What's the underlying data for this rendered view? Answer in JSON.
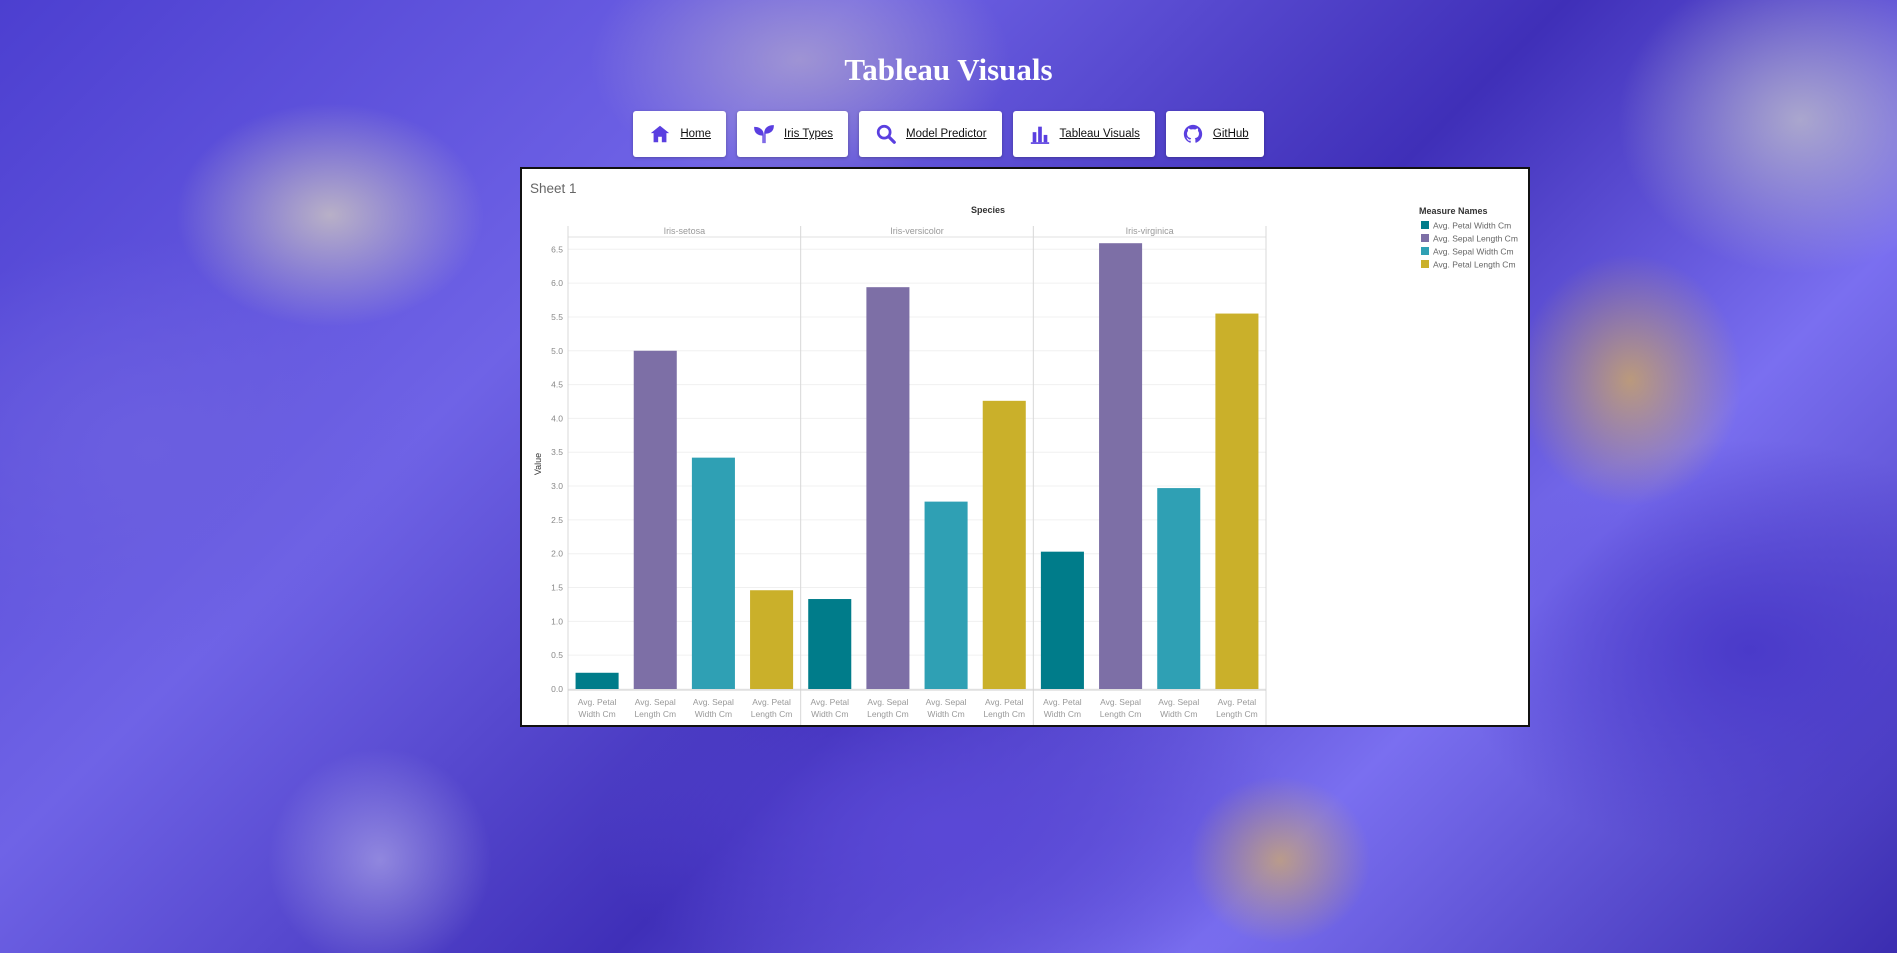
{
  "page": {
    "title": "Tableau Visuals"
  },
  "nav": {
    "items": [
      {
        "label": "Home",
        "icon": "home-icon"
      },
      {
        "label": "Iris Types",
        "icon": "sprout-icon"
      },
      {
        "label": "Model Predictor",
        "icon": "search-icon"
      },
      {
        "label": "Tableau Visuals",
        "icon": "bar-chart-icon"
      },
      {
        "label": "GitHub",
        "icon": "github-icon"
      }
    ],
    "icon_color": "#5a3fe0"
  },
  "chart_data": {
    "type": "bar",
    "sheet_title": "Sheet 1",
    "column_header": "Species",
    "ylabel": "Value",
    "ylim": [
      0,
      6.8
    ],
    "yticks": [
      "0.0",
      "0.5",
      "1.0",
      "1.5",
      "2.0",
      "2.5",
      "3.0",
      "3.5",
      "4.0",
      "4.5",
      "5.0",
      "5.5",
      "6.0",
      "6.5"
    ],
    "ytick_values": [
      0,
      0.5,
      1,
      1.5,
      2,
      2.5,
      3,
      3.5,
      4,
      4.5,
      5,
      5.5,
      6,
      6.5
    ],
    "measures": [
      {
        "key": "pw",
        "tick_line1": "Avg. Petal",
        "tick_line2": "Width Cm"
      },
      {
        "key": "sl",
        "tick_line1": "Avg. Sepal",
        "tick_line2": "Length Cm"
      },
      {
        "key": "sw",
        "tick_line1": "Avg. Sepal",
        "tick_line2": "Width Cm"
      },
      {
        "key": "pl",
        "tick_line1": "Avg. Petal",
        "tick_line2": "Length Cm"
      }
    ],
    "species": [
      {
        "name": "Iris-setosa",
        "values": [
          0.24,
          5.0,
          3.42,
          1.46
        ]
      },
      {
        "name": "Iris-versicolor",
        "values": [
          1.33,
          5.94,
          2.77,
          4.26
        ]
      },
      {
        "name": "Iris-virginica",
        "values": [
          2.03,
          6.59,
          2.97,
          5.55
        ]
      }
    ],
    "measure_colors": [
      "#007c8a",
      "#7d6fa6",
      "#2fa0b4",
      "#cab02a"
    ],
    "legend": {
      "title": "Measure Names",
      "position": "right",
      "entries": [
        {
          "label": "Avg. Petal Width Cm",
          "color": "#007c8a"
        },
        {
          "label": "Avg. Sepal Length Cm",
          "color": "#7d6fa6"
        },
        {
          "label": "Avg. Sepal Width Cm",
          "color": "#2fa0b4"
        },
        {
          "label": "Avg. Petal Length Cm",
          "color": "#cab02a"
        }
      ]
    },
    "grid": true
  }
}
